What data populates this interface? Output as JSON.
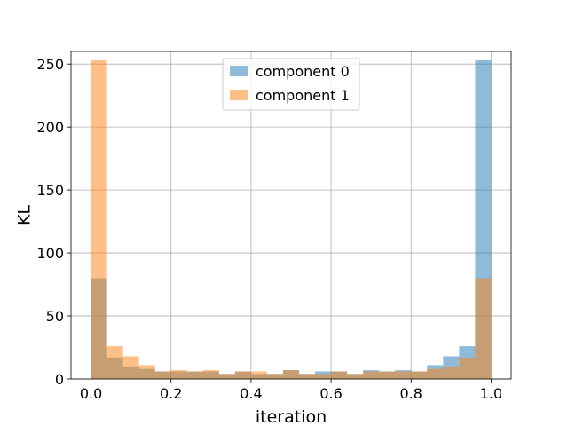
{
  "chart_data": {
    "type": "bar",
    "title": "",
    "xlabel": "iteration",
    "ylabel": "KL",
    "xlim": [
      -0.05,
      1.05
    ],
    "ylim": [
      0,
      260
    ],
    "xticks": [
      0.0,
      0.2,
      0.4,
      0.6,
      0.8,
      1.0
    ],
    "xtick_labels": [
      "0.0",
      "0.2",
      "0.4",
      "0.6",
      "0.8",
      "1.0"
    ],
    "yticks": [
      0,
      50,
      100,
      150,
      200,
      250
    ],
    "ytick_labels": [
      "0",
      "50",
      "100",
      "150",
      "200",
      "250"
    ],
    "grid": true,
    "legend_position": "top-center",
    "bin_edges": [
      0.0,
      0.04,
      0.08,
      0.12,
      0.16,
      0.2,
      0.24,
      0.28,
      0.32,
      0.36,
      0.4,
      0.44,
      0.48,
      0.52,
      0.56,
      0.6,
      0.64,
      0.68,
      0.72,
      0.76,
      0.8,
      0.84,
      0.88,
      0.92,
      0.96,
      1.0
    ],
    "series": [
      {
        "name": "component 0",
        "color": "#1f77b4",
        "opacity": 0.5,
        "values": [
          80,
          17,
          10,
          8,
          6,
          6,
          6,
          6,
          4,
          6,
          4,
          4,
          7,
          4,
          6,
          6,
          4,
          7,
          6,
          7,
          6,
          11,
          18,
          26,
          253
        ]
      },
      {
        "name": "component 1",
        "color": "#ff7f0e",
        "opacity": 0.5,
        "values": [
          253,
          26,
          18,
          11,
          6,
          7,
          6,
          7,
          4,
          6,
          6,
          4,
          7,
          4,
          4,
          6,
          4,
          6,
          6,
          6,
          6,
          8,
          10,
          17,
          80
        ]
      }
    ]
  }
}
